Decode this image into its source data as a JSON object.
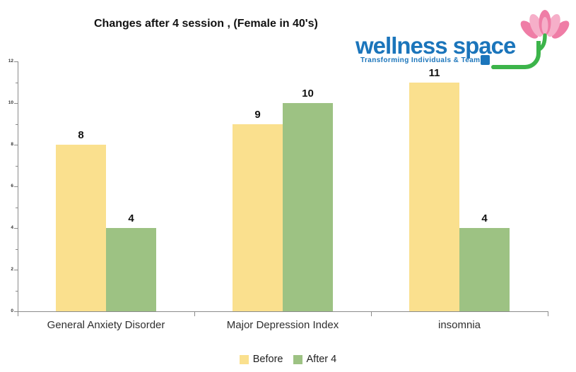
{
  "title": "Changes after 4 session , (Female in 40's)",
  "logo": {
    "brand": "wellness space",
    "tagline": "Transforming Individuals & Teams",
    "colors": {
      "blue": "#1B75BB",
      "green": "#3CB44A",
      "pink_dark": "#EF7DA6",
      "pink_light": "#F6AFC9"
    }
  },
  "chart_data": {
    "type": "bar",
    "categories": [
      "General Anxiety Disorder",
      "Major Depression Index",
      "insomnia"
    ],
    "series": [
      {
        "name": "Before",
        "color": "#FAE08E",
        "values": [
          8,
          9,
          11
        ]
      },
      {
        "name": "After 4",
        "color": "#9DC283",
        "values": [
          4,
          10,
          4
        ]
      }
    ],
    "title": "Changes after 4 session , (Female in 40's)",
    "xlabel": "",
    "ylabel": "",
    "ylim": [
      0,
      12
    ],
    "y_major_step": 2,
    "y_minor_step": 1,
    "grid": false,
    "legend_position": "bottom",
    "axis_color": "#8A8A8A",
    "data_labels": true
  }
}
